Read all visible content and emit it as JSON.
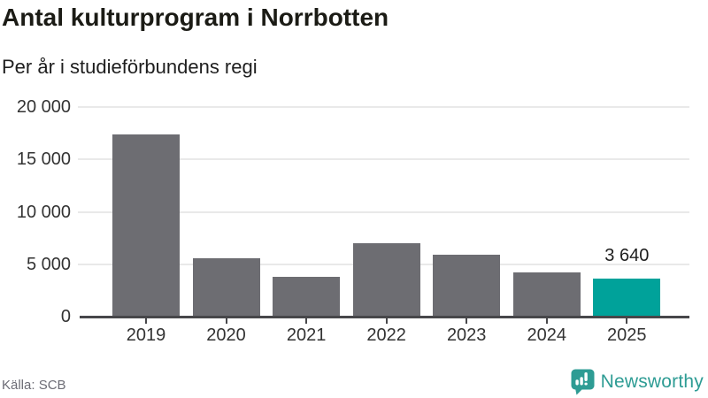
{
  "header": {
    "title": "Antal kulturprogram i Norrbotten",
    "subtitle": "Per år i studieförbundens regi"
  },
  "footer": {
    "source": "Källa: SCB",
    "brand": "Newsworthy"
  },
  "colors": {
    "bar": "#6d6d72",
    "highlight": "#00a29a",
    "axis": "#47474a",
    "grid": "#e9e9e9",
    "logo": "#2e9c94",
    "tick_text": "#333333"
  },
  "chart_data": {
    "type": "bar",
    "title": "Antal kulturprogram i Norrbotten",
    "subtitle": "Per år i studieförbundens regi",
    "source": "Källa: SCB",
    "categories": [
      "2019",
      "2020",
      "2021",
      "2022",
      "2023",
      "2024",
      "2025"
    ],
    "values": [
      17400,
      5590,
      3780,
      6970,
      5940,
      4190,
      3640
    ],
    "highlight_index": 6,
    "data_labels": {
      "6": "3 640"
    },
    "xlabel": "",
    "ylabel": "",
    "ylim": [
      0,
      20000
    ],
    "yticks": [
      0,
      5000,
      10000,
      15000,
      20000
    ],
    "ytick_labels": [
      "0",
      "5 000",
      "10 000",
      "15 000",
      "20 000"
    ],
    "grid": "horizontal-only",
    "legend": "none"
  }
}
